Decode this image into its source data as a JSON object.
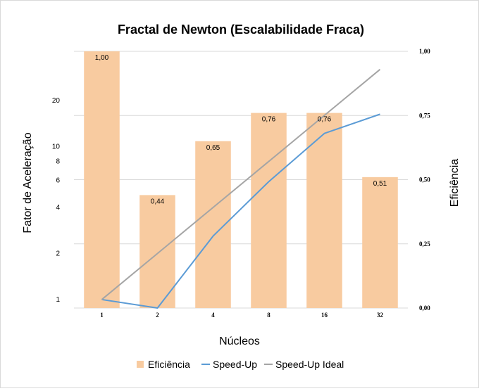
{
  "chart_data": {
    "type": "bar",
    "title": "Fractal de Newton (Escalabilidade Fraca)",
    "xlabel": "Núcleos",
    "ylabel": "Fator de Aceleração",
    "y2label": "Eficiência",
    "categories": [
      "1",
      "2",
      "4",
      "8",
      "16",
      "32"
    ],
    "y_scale": "log",
    "ylim": [
      0.88,
      42
    ],
    "y_ticks": [
      1,
      2,
      4,
      6,
      8,
      10,
      20
    ],
    "y2lim": [
      0,
      1
    ],
    "y2_ticks": [
      "0,00",
      "0,25",
      "0,50",
      "0,75",
      "1,00"
    ],
    "y2_tick_values": [
      0,
      0.25,
      0.5,
      0.75,
      1.0
    ],
    "grid": "horizontal",
    "legend_position": "bottom",
    "series": [
      {
        "name": "Eficiência",
        "type": "bar",
        "axis": "right",
        "color": "#f8cba0",
        "values": [
          1.0,
          0.44,
          0.65,
          0.76,
          0.76,
          0.51
        ],
        "labels": [
          "1,00",
          "0,44",
          "0,65",
          "0,76",
          "0,76",
          "0,51"
        ]
      },
      {
        "name": "Speed-Up",
        "type": "line",
        "axis": "left",
        "color": "#5b9bd5",
        "values": [
          1.0,
          0.88,
          2.6,
          5.9,
          12.2,
          16.3
        ]
      },
      {
        "name": "Speed-Up Ideal",
        "type": "line",
        "axis": "left",
        "color": "#a5a5a5",
        "values": [
          1,
          2,
          4,
          8,
          16,
          32
        ]
      }
    ]
  }
}
